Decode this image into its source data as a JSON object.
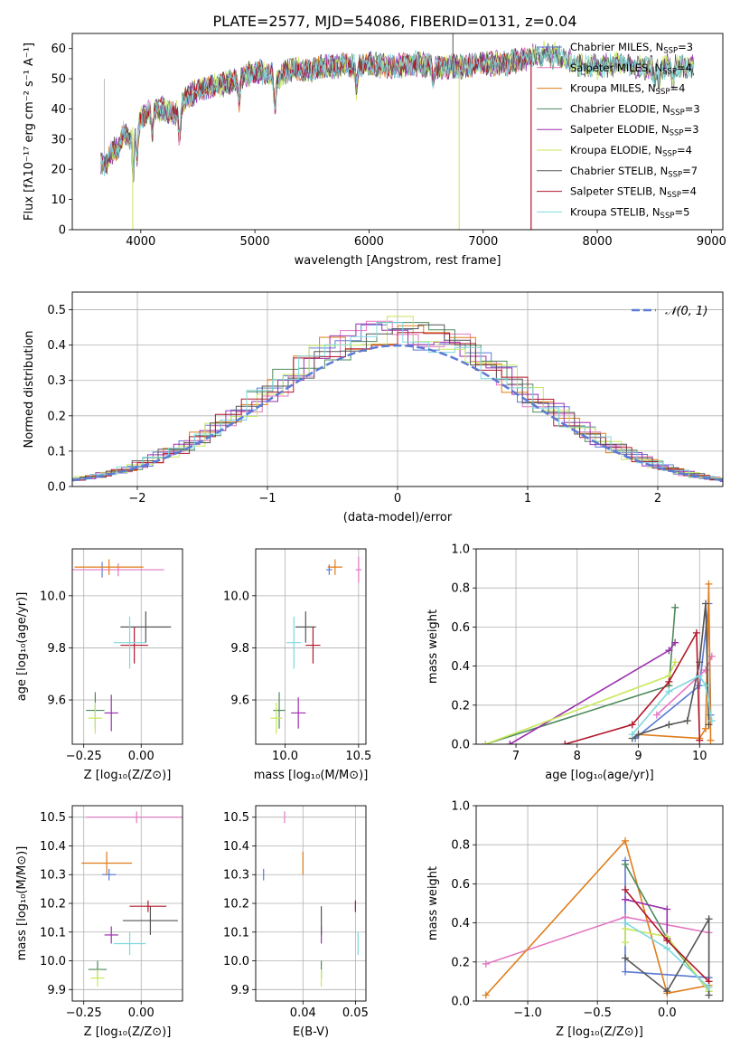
{
  "figure_title": "PLATE=2577, MJD=54086, FIBERID=0131, z=0.04",
  "colors": {
    "Chabrier MILES": "#5b7bd5",
    "Salpeter MILES": "#e377c2",
    "Kroupa MILES": "#e07d1a",
    "Chabrier ELODIE": "#4e8a5c",
    "Salpeter ELODIE": "#9b2fae",
    "Kroupa ELODIE": "#c8e85a",
    "Chabrier STELIB": "#555555",
    "Salpeter STELIB": "#b2182b",
    "Kroupa STELIB": "#7fd8df"
  },
  "chart_data": [
    {
      "id": "spectrum",
      "type": "line",
      "title": "PLATE=2577, MJD=54086, FIBERID=0131, z=0.04",
      "xlabel": "wavelength [Angstrom, rest frame]",
      "ylabel": "Flux [fλ10⁻¹⁷ erg cm⁻² s⁻¹ A⁻¹]",
      "xlim": [
        3400,
        9100
      ],
      "ylim": [
        0,
        65
      ],
      "xticks": [
        4000,
        5000,
        6000,
        7000,
        8000,
        9000
      ],
      "yticks": [
        0,
        10,
        20,
        30,
        40,
        50,
        60
      ],
      "grid": false,
      "legend_position": "right",
      "legend": [
        {
          "name": "Chabrier MILES",
          "label": "Chabrier MILES, N",
          "nssp": "=3"
        },
        {
          "name": "Salpeter MILES",
          "label": "Salpeter MILES, N",
          "nssp": "=4"
        },
        {
          "name": "Kroupa MILES",
          "label": "Kroupa MILES, N",
          "nssp": "=4"
        },
        {
          "name": "Chabrier ELODIE",
          "label": "Chabrier ELODIE, N",
          "nssp": "=3"
        },
        {
          "name": "Salpeter ELODIE",
          "label": "Salpeter ELODIE, N",
          "nssp": "=3"
        },
        {
          "name": "Kroupa ELODIE",
          "label": "Kroupa ELODIE, N",
          "nssp": "=4"
        },
        {
          "name": "Chabrier STELIB",
          "label": "Chabrier STELIB, N",
          "nssp": "=7"
        },
        {
          "name": "Salpeter STELIB",
          "label": "Salpeter STELIB, N",
          "nssp": "=4"
        },
        {
          "name": "Kroupa STELIB",
          "label": "Kroupa STELIB, N",
          "nssp": "=5"
        }
      ],
      "continuum": [
        [
          3650,
          22
        ],
        [
          3700,
          22
        ],
        [
          3750,
          26
        ],
        [
          3800,
          27
        ],
        [
          3850,
          32
        ],
        [
          3900,
          30
        ],
        [
          3950,
          34
        ],
        [
          4000,
          37
        ],
        [
          4100,
          40
        ],
        [
          4200,
          40
        ],
        [
          4300,
          38
        ],
        [
          4400,
          44
        ],
        [
          4500,
          46
        ],
        [
          4600,
          47
        ],
        [
          4700,
          48
        ],
        [
          4800,
          49
        ],
        [
          4900,
          51
        ],
        [
          5000,
          52
        ],
        [
          5100,
          52
        ],
        [
          5200,
          50
        ],
        [
          5300,
          53
        ],
        [
          5400,
          53
        ],
        [
          5500,
          53
        ],
        [
          5600,
          54
        ],
        [
          5700,
          54
        ],
        [
          5800,
          55
        ],
        [
          5900,
          54
        ],
        [
          6000,
          55
        ],
        [
          6200,
          54
        ],
        [
          6400,
          55
        ],
        [
          6600,
          54
        ],
        [
          6800,
          54
        ],
        [
          7000,
          55
        ],
        [
          7200,
          55
        ],
        [
          7400,
          57
        ],
        [
          7600,
          59
        ],
        [
          7800,
          55
        ],
        [
          8000,
          54
        ],
        [
          8200,
          55
        ],
        [
          8400,
          54
        ],
        [
          8600,
          54
        ],
        [
          8800,
          54
        ]
      ]
    },
    {
      "id": "residuals",
      "type": "histogram",
      "xlabel": "(data-model)/error",
      "ylabel": "Normed distribution",
      "xlim": [
        -2.5,
        2.5
      ],
      "ylim": [
        0,
        0.55
      ],
      "xticks": [
        -2,
        -1,
        0,
        1,
        2
      ],
      "yticks": [
        0.0,
        0.1,
        0.2,
        0.3,
        0.4,
        0.5
      ],
      "grid": true,
      "legend": "𝒩(0, 1)",
      "bin_width": 0.2
    },
    {
      "id": "age_vs_Z",
      "type": "errorbar",
      "xlabel": "Z [log₁₀(Z/Z⊙)]",
      "ylabel": "age [log₁₀(age/yr)]",
      "xlim": [
        -0.3,
        0.18
      ],
      "ylim": [
        9.43,
        10.18
      ],
      "xticks": [
        -0.25,
        0.0
      ],
      "yticks": [
        9.6,
        9.8,
        10.0
      ],
      "grid": true,
      "points": [
        {
          "series": "Chabrier MILES",
          "x": -0.17,
          "xerr": 0.0,
          "y": 10.1,
          "yerr": 0.03
        },
        {
          "series": "Salpeter MILES",
          "x": -0.1,
          "xerr": 0.2,
          "y": 10.1,
          "yerr": 0.025
        },
        {
          "series": "Kroupa MILES",
          "x": -0.14,
          "xerr": 0.15,
          "y": 10.11,
          "yerr": 0.03
        },
        {
          "series": "Chabrier ELODIE",
          "x": -0.2,
          "xerr": 0.04,
          "y": 9.56,
          "yerr": 0.07
        },
        {
          "series": "Salpeter ELODIE",
          "x": -0.13,
          "xerr": 0.03,
          "y": 9.55,
          "yerr": 0.07
        },
        {
          "series": "Kroupa ELODIE",
          "x": -0.2,
          "xerr": 0.03,
          "y": 9.53,
          "yerr": 0.06
        },
        {
          "series": "Chabrier STELIB",
          "x": 0.02,
          "xerr": 0.11,
          "y": 9.88,
          "yerr": 0.06
        },
        {
          "series": "Salpeter STELIB",
          "x": -0.03,
          "xerr": 0.06,
          "y": 9.81,
          "yerr": 0.07
        },
        {
          "series": "Kroupa STELIB",
          "x": -0.05,
          "xerr": 0.07,
          "y": 9.82,
          "yerr": 0.1
        }
      ]
    },
    {
      "id": "age_vs_mass",
      "type": "errorbar",
      "xlabel": "mass [log₁₀(M/M⊙)]",
      "xlim": [
        9.8,
        10.55
      ],
      "ylim": [
        9.43,
        10.18
      ],
      "xticks": [
        10.0,
        10.5
      ],
      "yticks": [
        9.6,
        9.8,
        10.0
      ],
      "grid": true,
      "points": [
        {
          "series": "Chabrier MILES",
          "x": 10.3,
          "xerr": 0.02,
          "y": 10.1,
          "yerr": 0.02
        },
        {
          "series": "Salpeter MILES",
          "x": 10.5,
          "xerr": 0.02,
          "y": 10.1,
          "yerr": 0.05
        },
        {
          "series": "Kroupa MILES",
          "x": 10.34,
          "xerr": 0.05,
          "y": 10.11,
          "yerr": 0.03
        },
        {
          "series": "Chabrier ELODIE",
          "x": 9.96,
          "xerr": 0.04,
          "y": 9.56,
          "yerr": 0.07
        },
        {
          "series": "Salpeter ELODIE",
          "x": 10.09,
          "xerr": 0.05,
          "y": 9.55,
          "yerr": 0.06
        },
        {
          "series": "Kroupa ELODIE",
          "x": 9.94,
          "xerr": 0.04,
          "y": 9.53,
          "yerr": 0.06
        },
        {
          "series": "Chabrier STELIB",
          "x": 10.14,
          "xerr": 0.07,
          "y": 9.88,
          "yerr": 0.06
        },
        {
          "series": "Salpeter STELIB",
          "x": 10.19,
          "xerr": 0.05,
          "y": 9.81,
          "yerr": 0.07
        },
        {
          "series": "Kroupa STELIB",
          "x": 10.06,
          "xerr": 0.05,
          "y": 9.82,
          "yerr": 0.1
        }
      ]
    },
    {
      "id": "weight_vs_age",
      "type": "line",
      "xlabel": "age [log₁₀(age/yr)]",
      "ylabel": "mass weight",
      "xlim": [
        6.35,
        10.38
      ],
      "ylim": [
        0,
        1
      ],
      "xticks": [
        7,
        8,
        9,
        10
      ],
      "yticks": [
        0.0,
        0.2,
        0.4,
        0.6,
        0.8,
        1.0
      ],
      "grid": true,
      "series": [
        {
          "name": "Chabrier MILES",
          "x": [
            8.95,
            10.0,
            10.15,
            10.18
          ],
          "y": [
            0.03,
            0.3,
            0.72,
            0.15
          ]
        },
        {
          "name": "Salpeter MILES",
          "x": [
            9.3,
            10.1,
            10.2
          ],
          "y": [
            0.15,
            0.38,
            0.45
          ]
        },
        {
          "name": "Kroupa MILES",
          "x": [
            9.0,
            10.0,
            10.1,
            10.15,
            10.18
          ],
          "y": [
            0.05,
            0.03,
            0.08,
            0.82,
            0.02
          ]
        },
        {
          "name": "Chabrier ELODIE",
          "x": [
            6.5,
            9.5,
            9.6
          ],
          "y": [
            0.0,
            0.3,
            0.7
          ]
        },
        {
          "name": "Salpeter ELODIE",
          "x": [
            6.9,
            9.5,
            9.6
          ],
          "y": [
            0.0,
            0.48,
            0.52
          ]
        },
        {
          "name": "Kroupa ELODIE",
          "x": [
            6.5,
            9.5,
            9.6
          ],
          "y": [
            0.0,
            0.35,
            0.42
          ]
        },
        {
          "name": "Chabrier STELIB",
          "x": [
            8.9,
            9.0,
            9.5,
            9.8,
            10.0,
            10.1,
            10.15
          ],
          "y": [
            0.03,
            0.05,
            0.1,
            0.12,
            0.42,
            0.72,
            0.1
          ]
        },
        {
          "name": "Salpeter STELIB",
          "x": [
            7.8,
            8.9,
            9.5,
            9.95,
            10.0
          ],
          "y": [
            0.0,
            0.1,
            0.32,
            0.57,
            0.02
          ]
        },
        {
          "name": "Kroupa STELIB",
          "x": [
            8.9,
            9.5,
            10.0,
            10.1,
            10.2
          ],
          "y": [
            0.05,
            0.27,
            0.35,
            0.3,
            0.12
          ]
        }
      ]
    },
    {
      "id": "mass_vs_Z",
      "type": "errorbar",
      "xlabel": "Z [log₁₀(Z/Z⊙)]",
      "ylabel": "mass [log₁₀(M/M⊙)]",
      "xlim": [
        -0.3,
        0.18
      ],
      "ylim": [
        9.86,
        10.54
      ],
      "xticks": [
        -0.25,
        0.0
      ],
      "yticks": [
        9.9,
        10.0,
        10.1,
        10.2,
        10.3,
        10.4,
        10.5
      ],
      "grid": true,
      "points": [
        {
          "series": "Chabrier MILES",
          "x": -0.14,
          "xerr": 0.03,
          "y": 10.3,
          "yerr": 0.02
        },
        {
          "series": "Salpeter MILES",
          "x": -0.02,
          "xerr": 0.22,
          "y": 10.5,
          "yerr": 0.02
        },
        {
          "series": "Kroupa MILES",
          "x": -0.15,
          "xerr": 0.11,
          "y": 10.34,
          "yerr": 0.04
        },
        {
          "series": "Chabrier ELODIE",
          "x": -0.19,
          "xerr": 0.04,
          "y": 9.97,
          "yerr": 0.03
        },
        {
          "series": "Salpeter ELODIE",
          "x": -0.13,
          "xerr": 0.03,
          "y": 10.09,
          "yerr": 0.03
        },
        {
          "series": "Kroupa ELODIE",
          "x": -0.19,
          "xerr": 0.03,
          "y": 9.94,
          "yerr": 0.03
        },
        {
          "series": "Chabrier STELIB",
          "x": 0.04,
          "xerr": 0.12,
          "y": 10.14,
          "yerr": 0.05
        },
        {
          "series": "Salpeter STELIB",
          "x": 0.03,
          "xerr": 0.08,
          "y": 10.19,
          "yerr": 0.02
        },
        {
          "series": "Kroupa STELIB",
          "x": -0.05,
          "xerr": 0.07,
          "y": 10.06,
          "yerr": 0.04
        }
      ]
    },
    {
      "id": "mass_vs_ebv",
      "type": "errorbar",
      "xlabel": "E(B-V)",
      "xlim": [
        0.031,
        0.052
      ],
      "ylim": [
        9.86,
        10.54
      ],
      "xticks": [
        0.04,
        0.05
      ],
      "yticks": [
        9.9,
        10.0,
        10.1,
        10.2,
        10.3,
        10.4,
        10.5
      ],
      "grid": true,
      "points": [
        {
          "series": "Chabrier MILES",
          "x": 0.0325,
          "xerr": 0.0,
          "y": 10.3,
          "yerr": 0.02
        },
        {
          "series": "Salpeter MILES",
          "x": 0.0365,
          "xerr": 0.0,
          "y": 10.5,
          "yerr": 0.02
        },
        {
          "series": "Kroupa MILES",
          "x": 0.04,
          "xerr": 0.0,
          "y": 10.34,
          "yerr": 0.04
        },
        {
          "series": "Chabrier ELODIE",
          "x": 0.0435,
          "xerr": 0.0,
          "y": 9.97,
          "yerr": 0.03
        },
        {
          "series": "Salpeter ELODIE",
          "x": 0.0435,
          "xerr": 0.0,
          "y": 10.09,
          "yerr": 0.03
        },
        {
          "series": "Kroupa ELODIE",
          "x": 0.0435,
          "xerr": 0.0,
          "y": 9.94,
          "yerr": 0.03
        },
        {
          "series": "Chabrier STELIB",
          "x": 0.0435,
          "xerr": 0.0,
          "y": 10.14,
          "yerr": 0.05
        },
        {
          "series": "Salpeter STELIB",
          "x": 0.05,
          "xerr": 0.0,
          "y": 10.19,
          "yerr": 0.02
        },
        {
          "series": "Kroupa STELIB",
          "x": 0.0505,
          "xerr": 0.0,
          "y": 10.06,
          "yerr": 0.04
        }
      ]
    },
    {
      "id": "weight_vs_Z",
      "type": "line",
      "xlabel": "Z [log₁₀(Z/Z⊙)]",
      "ylabel": "mass weight",
      "xlim": [
        -1.37,
        0.4
      ],
      "ylim": [
        0,
        1
      ],
      "xticks": [
        -1.0,
        -0.5,
        0.0
      ],
      "yticks": [
        0.0,
        0.2,
        0.4,
        0.6,
        0.8,
        1.0
      ],
      "grid": true,
      "series": [
        {
          "name": "Chabrier MILES",
          "x": [
            -0.3,
            -0.3,
            0.3
          ],
          "y": [
            0.72,
            0.15,
            0.12
          ]
        },
        {
          "name": "Salpeter MILES",
          "x": [
            -1.3,
            -0.3,
            0.3
          ],
          "y": [
            0.19,
            0.43,
            0.35
          ]
        },
        {
          "name": "Kroupa MILES",
          "x": [
            -1.3,
            -0.3,
            0.0,
            0.3
          ],
          "y": [
            0.03,
            0.82,
            0.04,
            0.08
          ]
        },
        {
          "name": "Chabrier ELODIE",
          "x": [
            -0.3,
            0.0,
            0.3
          ],
          "y": [
            0.7,
            0.32,
            0.05
          ]
        },
        {
          "name": "Salpeter ELODIE",
          "x": [
            -0.3,
            0.0,
            0.0
          ],
          "y": [
            0.52,
            0.47,
            0.32
          ]
        },
        {
          "name": "Kroupa ELODIE",
          "x": [
            -0.3,
            -0.3,
            0.0,
            0.3
          ],
          "y": [
            0.3,
            0.37,
            0.33,
            0.05
          ]
        },
        {
          "name": "Chabrier STELIB",
          "x": [
            -0.3,
            0.0,
            0.3,
            0.3
          ],
          "y": [
            0.22,
            0.05,
            0.42,
            0.03
          ]
        },
        {
          "name": "Salpeter STELIB",
          "x": [
            -0.3,
            0.0,
            0.3
          ],
          "y": [
            0.57,
            0.31,
            0.1
          ]
        },
        {
          "name": "Kroupa STELIB",
          "x": [
            -0.3,
            0.0,
            0.3
          ],
          "y": [
            0.4,
            0.27,
            0.07
          ]
        }
      ]
    }
  ]
}
